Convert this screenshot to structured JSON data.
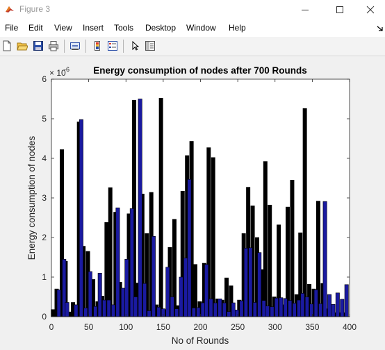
{
  "window": {
    "title": "Figure 3",
    "minimize_icon": "minimize-icon",
    "maximize_icon": "maximize-icon",
    "close_icon": "close-icon"
  },
  "menu": [
    "File",
    "Edit",
    "View",
    "Insert",
    "Tools",
    "Desktop",
    "Window",
    "Help"
  ],
  "toolbar": {
    "icons": [
      "new-figure-icon",
      "open-file-icon",
      "save-icon",
      "print-icon",
      "link-plot-icon",
      "colorbar-icon",
      "legend-icon",
      "select-pointer-icon",
      "property-editor-icon"
    ]
  },
  "chart_data": {
    "type": "bar",
    "title": "Energy consumption of nodes after 700 Rounds",
    "xlabel": "No of Rounds",
    "ylabel": "Energy consumption of nodes",
    "y_exponent_label": "× 10",
    "y_exponent": "-6",
    "xlim": [
      0,
      400
    ],
    "ylim": [
      0,
      6
    ],
    "xticks": [
      0,
      50,
      100,
      150,
      200,
      250,
      300,
      350,
      400
    ],
    "yticks": [
      0,
      1,
      2,
      3,
      4,
      5,
      6
    ],
    "bar_width": 5,
    "colors": {
      "outer": "#000000",
      "inner": "#1a1aa0",
      "edge": "#000000"
    },
    "outer_series": {
      "x": [
        2,
        7,
        14,
        19,
        24,
        29,
        37,
        43,
        49,
        56,
        62,
        68,
        74,
        79,
        86,
        92,
        99,
        104,
        111,
        116,
        122,
        128,
        134,
        141,
        147,
        153,
        159,
        165,
        170,
        176,
        182,
        188,
        193,
        199,
        205,
        211,
        217,
        223,
        229,
        235,
        241,
        247,
        252,
        258,
        264,
        270,
        276,
        282,
        287,
        293,
        299,
        305,
        311,
        317,
        323,
        329,
        334,
        340,
        346,
        352,
        358,
        364,
        370,
        375,
        381,
        387,
        393
      ],
      "values": [
        0.18,
        0.7,
        4.22,
        1.4,
        0.12,
        0.36,
        4.92,
        1.78,
        1.65,
        0.94,
        0.38,
        0.52,
        2.38,
        3.26,
        2.64,
        0.87,
        0.18,
        2.6,
        5.47,
        0.85,
        3.1,
        2.1,
        3.14,
        0.3,
        5.52,
        0.18,
        1.75,
        2.46,
        0.28,
        3.17,
        4.07,
        4.43,
        1.32,
        0.38,
        1.35,
        4.27,
        4.02,
        0.45,
        0.42,
        0.98,
        0.78,
        0.12,
        0.42,
        2.1,
        3.27,
        2.8,
        2.0,
        1.19,
        3.92,
        2.82,
        0.5,
        2.32,
        0.3,
        2.77,
        3.45,
        0.56,
        2.12,
        5.26,
        0.82,
        0.7,
        2.92,
        0.84,
        0.2,
        0.1,
        0.1,
        0.1,
        0.1
      ]
    },
    "inner_series": {
      "x": [
        10,
        17,
        21,
        33,
        40,
        46,
        52,
        59,
        65,
        71,
        77,
        83,
        89,
        96,
        101,
        108,
        113,
        119,
        125,
        131,
        137,
        144,
        150,
        156,
        162,
        168,
        174,
        180,
        185,
        191,
        197,
        203,
        208,
        214,
        220,
        226,
        232,
        238,
        244,
        249,
        255,
        261,
        267,
        273,
        279,
        285,
        290,
        296,
        302,
        308,
        314,
        320,
        326,
        332,
        337,
        343,
        349,
        355,
        361,
        367,
        373,
        378,
        384,
        390,
        396
      ],
      "values": [
        0.68,
        1.45,
        0.36,
        0.3,
        4.98,
        0.22,
        1.14,
        0.26,
        1.1,
        0.42,
        0.42,
        0.3,
        2.75,
        0.72,
        1.45,
        2.73,
        0.5,
        5.5,
        0.84,
        0.15,
        2.03,
        0.24,
        0.2,
        1.25,
        0.5,
        0.2,
        1.0,
        1.48,
        3.47,
        0.22,
        0.23,
        0.35,
        1.32,
        0.45,
        0.35,
        0.45,
        0.35,
        0.13,
        0.35,
        0.17,
        0.4,
        1.73,
        1.74,
        0.36,
        1.62,
        0.41,
        0.27,
        0.25,
        0.47,
        0.48,
        0.46,
        0.41,
        0.34,
        0.42,
        0.59,
        0.5,
        0.32,
        0.68,
        0.33,
        2.91,
        0.56,
        0.31,
        0.6,
        0.44,
        0.81
      ]
    }
  }
}
